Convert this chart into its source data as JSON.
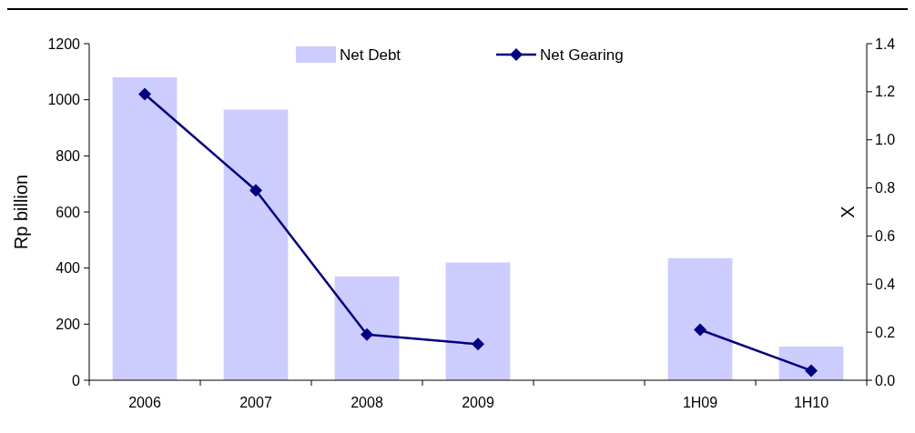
{
  "chart_data": {
    "type": "bar",
    "categories": [
      "2006",
      "2007",
      "2008",
      "2009",
      null,
      "1H09",
      "1H10"
    ],
    "series": [
      {
        "name": "Net Debt",
        "color": "#ccccff",
        "values": [
          1080,
          965,
          370,
          420,
          null,
          435,
          120
        ]
      },
      {
        "name": "Net Gearing",
        "type": "line",
        "axis": "y2",
        "color": "#000080",
        "marker": "diamond",
        "values": [
          1.19,
          0.79,
          0.19,
          0.15,
          null,
          0.21,
          0.04
        ]
      }
    ],
    "ylabel": "Rp billion",
    "y2label": "X",
    "ylim": [
      0,
      1200
    ],
    "yticks": [
      0,
      200,
      400,
      600,
      800,
      1000,
      1200
    ],
    "y2lim": [
      0,
      1.4
    ],
    "y2ticks": [
      {
        "value": 0,
        "label": "0.0"
      },
      {
        "value": 0.2,
        "label": "0.2"
      },
      {
        "value": 0.4,
        "label": "0.4"
      },
      {
        "value": 0.6,
        "label": "0.6"
      },
      {
        "value": 0.8,
        "label": "0.8"
      },
      {
        "value": 1,
        "label": "1.0"
      },
      {
        "value": 1.2,
        "label": "1.2"
      },
      {
        "value": 1.4,
        "label": "1.4"
      }
    ],
    "legend": "top",
    "grid": false
  }
}
